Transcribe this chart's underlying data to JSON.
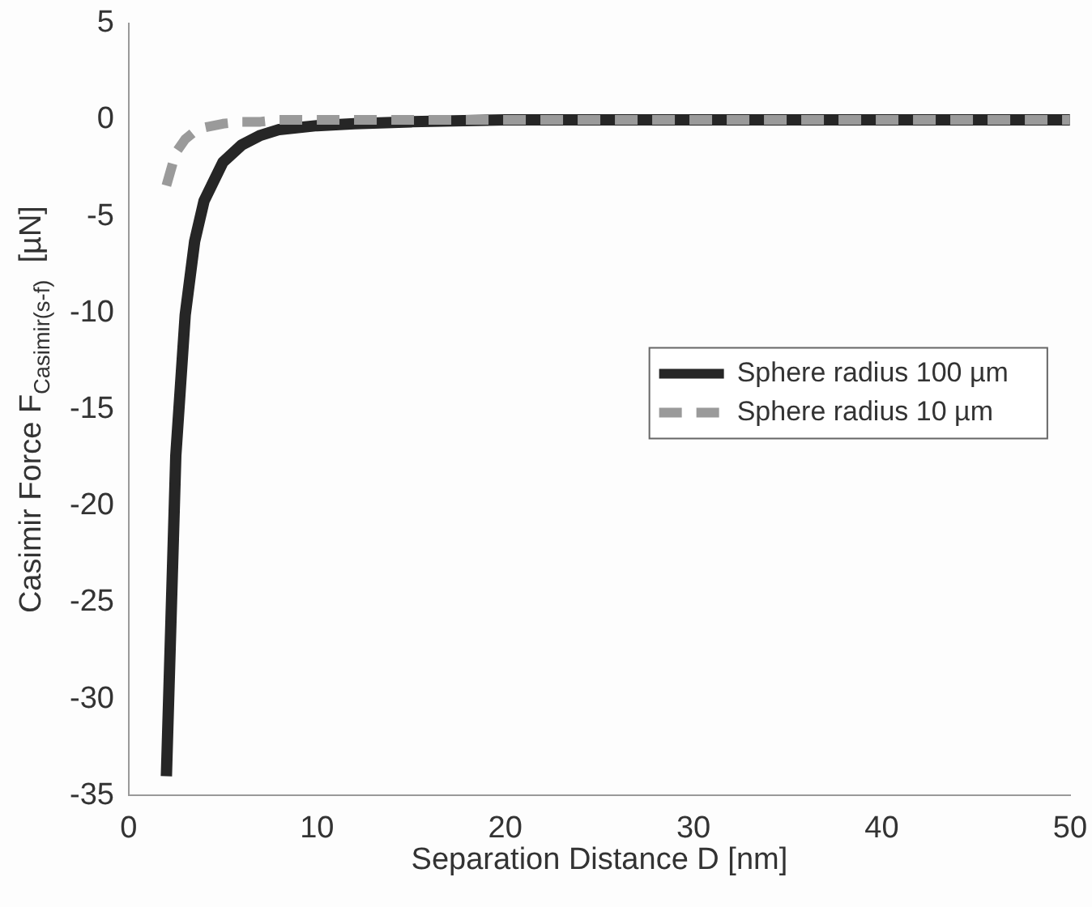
{
  "chart_data": {
    "type": "line",
    "xlabel": "Separation Distance D [nm]",
    "ylabel": "Casimir Force F$_{Casimir(s-f)}$  [µN]",
    "x": [
      2,
      2.5,
      3,
      3.5,
      4,
      5,
      6,
      7,
      8,
      10,
      12,
      15,
      20,
      30,
      40,
      50
    ],
    "series": [
      {
        "name": "Sphere radius 100 µm",
        "color": "#262626",
        "line_style": "solid",
        "values": [
          -34,
          -17.4,
          -10.1,
          -6.3,
          -4.2,
          -2.2,
          -1.3,
          -0.8,
          -0.5,
          -0.3,
          -0.2,
          -0.1,
          0,
          0,
          0,
          0
        ]
      },
      {
        "name": "Sphere radius 10 µm",
        "color": "#9a9a9a",
        "line_style": "dashed",
        "values": [
          -3.4,
          -1.7,
          -1.0,
          -0.6,
          -0.4,
          -0.2,
          -0.1,
          -0.1,
          0,
          0,
          0,
          0,
          0,
          0,
          0,
          0
        ]
      }
    ],
    "xlim": [
      0,
      50
    ],
    "xticks": [
      0,
      10,
      20,
      30,
      40,
      50
    ],
    "ylim": [
      -35,
      5
    ],
    "yticks": [
      -35,
      -30,
      -25,
      -20,
      -15,
      -10,
      -5,
      0,
      5
    ],
    "grid": false,
    "legend": "right",
    "marker": "none"
  }
}
